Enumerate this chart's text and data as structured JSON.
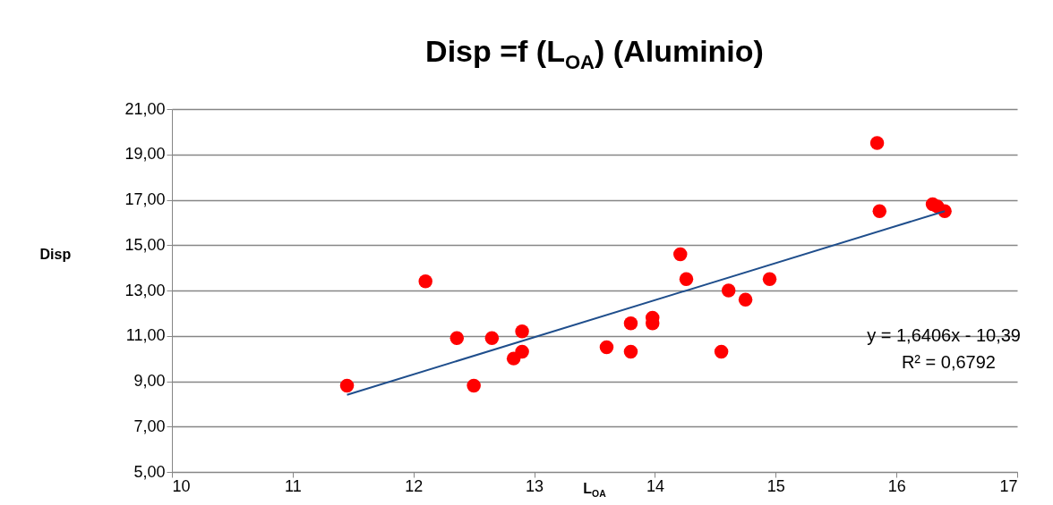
{
  "chart_data": {
    "type": "scatter",
    "title": "Disp =f (L$_{OA}$) (Aluminio)",
    "xlabel": "L$_{OA}$",
    "ylabel": "Disp",
    "xlim": [
      10,
      17
    ],
    "xticks": [
      10,
      11,
      12,
      13,
      14,
      15,
      16,
      17
    ],
    "ylim": [
      5,
      21
    ],
    "yticks": [
      {
        "value": 5,
        "label": "5,00"
      },
      {
        "value": 7,
        "label": "7,00"
      },
      {
        "value": 9,
        "label": "9,00"
      },
      {
        "value": 11,
        "label": "11,00"
      },
      {
        "value": 13,
        "label": "13,00"
      },
      {
        "value": 15,
        "label": "15,00"
      },
      {
        "value": 17,
        "label": "17,00"
      },
      {
        "value": 19,
        "label": "19,00"
      },
      {
        "value": 21,
        "label": "21,00"
      }
    ],
    "grid": "y",
    "annotations": [
      "y = 1,6406x - 10,39",
      "R² = 0,6792"
    ],
    "series": [
      {
        "marker": "circle",
        "color": "#ff0000",
        "x": [
          11.45,
          12.1,
          12.36,
          12.5,
          12.65,
          12.83,
          12.9,
          12.9,
          13.6,
          13.8,
          13.8,
          13.98,
          13.98,
          14.21,
          14.26,
          14.55,
          14.61,
          14.75,
          14.95,
          15.84,
          15.86,
          16.3,
          16.34,
          16.4
        ],
        "values": [
          8.8,
          13.4,
          10.9,
          8.8,
          10.9,
          10.0,
          10.3,
          11.2,
          10.5,
          10.3,
          11.55,
          11.55,
          11.8,
          14.6,
          13.5,
          10.3,
          13.0,
          12.6,
          13.5,
          19.5,
          16.5,
          16.8,
          16.7,
          16.5
        ]
      },
      {
        "type": "line",
        "color": "#1f4e8c",
        "line_style": "solid",
        "x": [
          11.45,
          16.4
        ],
        "values": [
          8.4,
          16.5
        ]
      }
    ]
  }
}
